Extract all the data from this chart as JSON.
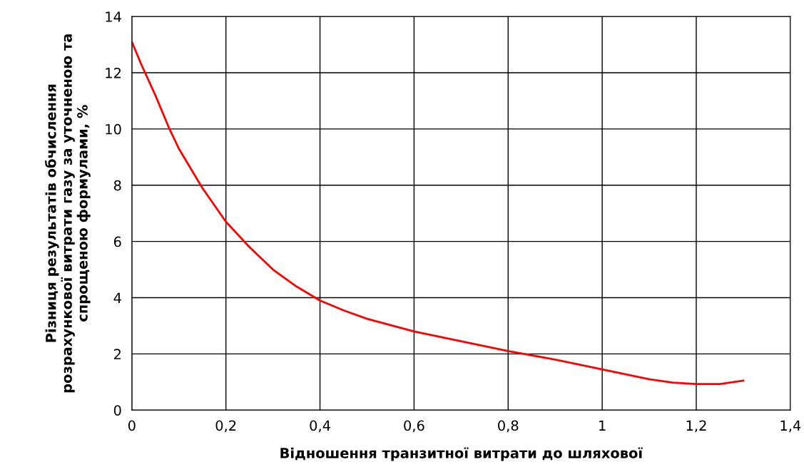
{
  "chart_data": {
    "type": "line",
    "xlabel": "Відношення транзитної витрати до шляхової",
    "ylabel": "Різниця результатів обчислення\nрозрахункової витрати газу за уточненою та\nспрощеною формулами, %",
    "x": [
      0,
      0.02,
      0.05,
      0.08,
      0.1,
      0.15,
      0.2,
      0.25,
      0.3,
      0.35,
      0.4,
      0.45,
      0.5,
      0.6,
      0.7,
      0.8,
      0.85,
      0.9,
      1.0,
      1.1,
      1.15,
      1.2,
      1.25,
      1.3
    ],
    "series": [
      {
        "color": "#ff0000",
        "values": [
          13.1,
          12.3,
          11.2,
          10.0,
          9.3,
          7.9,
          6.7,
          5.8,
          5.0,
          4.4,
          3.9,
          3.55,
          3.25,
          2.8,
          2.45,
          2.1,
          1.95,
          1.8,
          1.45,
          1.1,
          0.98,
          0.93,
          0.93,
          1.05
        ]
      }
    ],
    "xlim": [
      0,
      1.4
    ],
    "xticks": [
      0,
      {
        "value": 0.2,
        "label": "0,2"
      },
      {
        "value": 0.4,
        "label": "0,4"
      },
      {
        "value": 0.6,
        "label": "0,6"
      },
      {
        "value": 0.8,
        "label": "0,8"
      },
      1,
      {
        "value": 1.2,
        "label": "1,2"
      },
      {
        "value": 1.4,
        "label": "1,4"
      }
    ],
    "ylim": [
      0,
      14
    ],
    "yticks": [
      0,
      2,
      4,
      6,
      8,
      10,
      12,
      14
    ],
    "grid": true,
    "marker": "none",
    "line_style": "solid",
    "legend": false
  }
}
